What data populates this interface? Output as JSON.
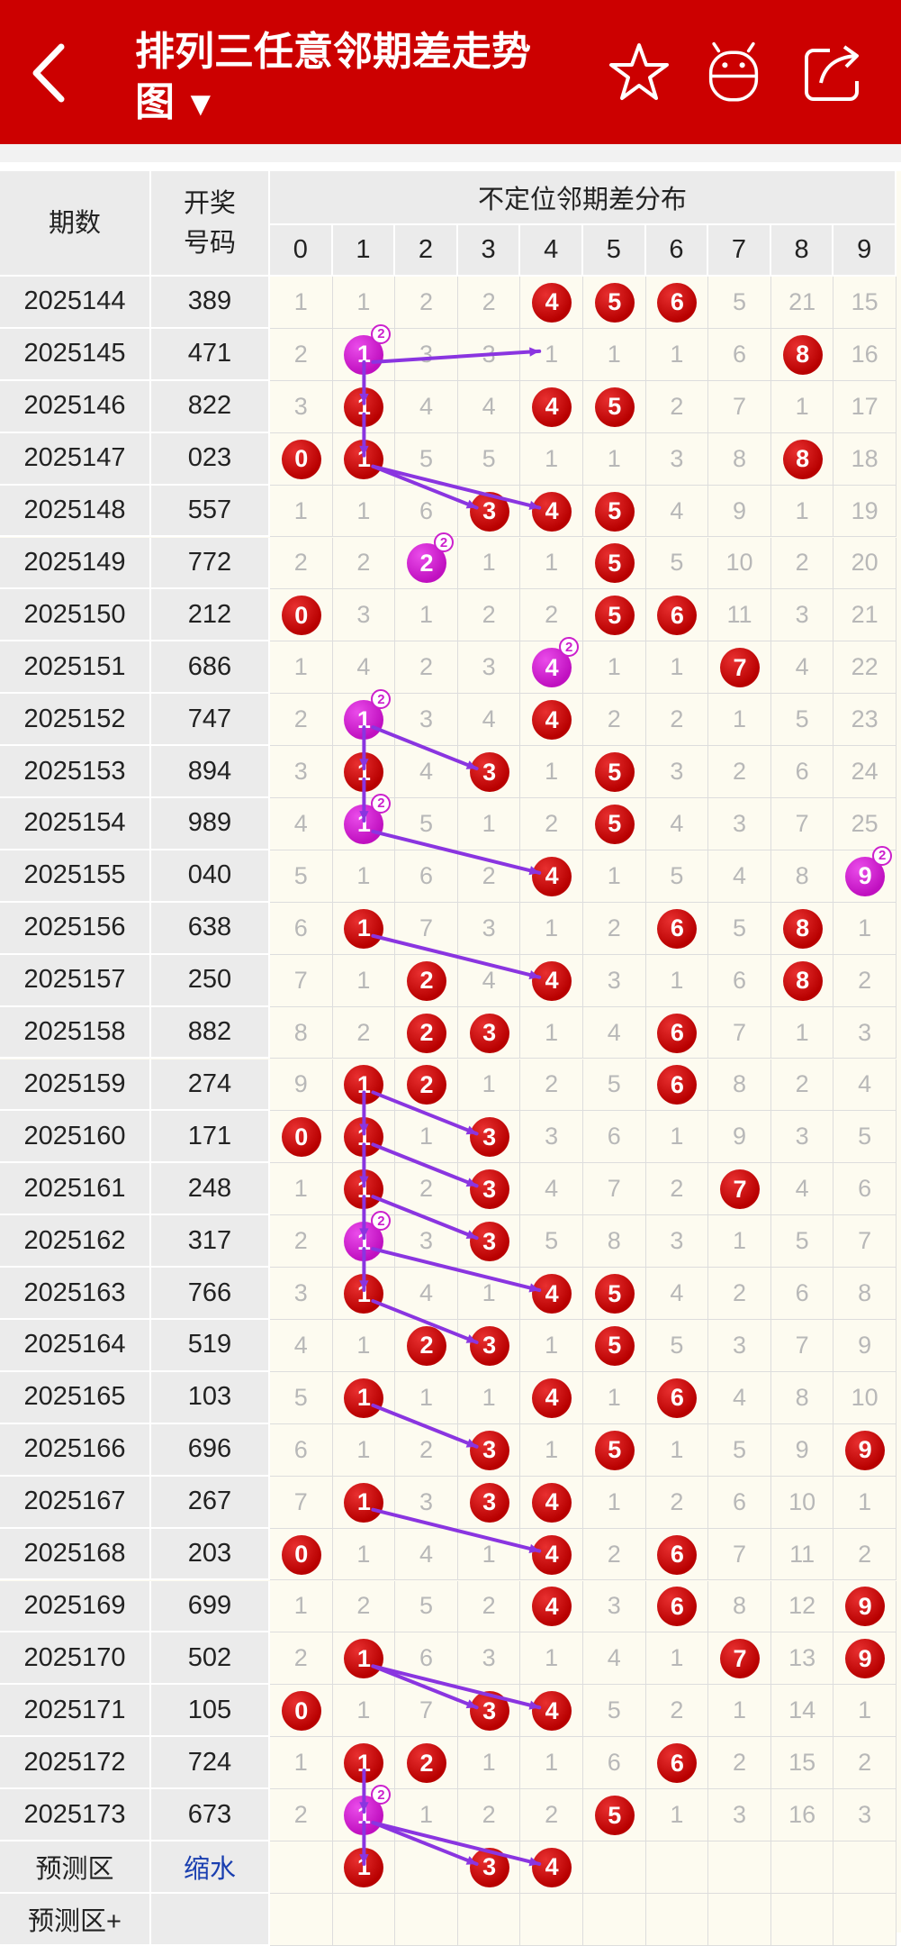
{
  "header": {
    "title_line1": "排列三任意邻期差走势",
    "title_line2": "图",
    "dropdown_arrow": "▼",
    "back_icon": "back-chevron-icon",
    "favorite_icon": "star-icon",
    "robot_icon": "robot-icon",
    "share_icon": "share-icon"
  },
  "table": {
    "col_period": "期数",
    "col_number_line1": "开奖",
    "col_number_line2": "号码",
    "col_group": "不定位邻期差分布",
    "digits": [
      "0",
      "1",
      "2",
      "3",
      "4",
      "5",
      "6",
      "7",
      "8",
      "9"
    ],
    "rows": [
      {
        "period": "2025144",
        "num": "389",
        "cells": [
          1,
          1,
          2,
          2,
          "4",
          "5",
          "6",
          5,
          21,
          15
        ]
      },
      {
        "period": "2025145",
        "num": "471",
        "cells": [
          2,
          "1*",
          3,
          3,
          1,
          1,
          1,
          6,
          "8",
          16
        ]
      },
      {
        "period": "2025146",
        "num": "822",
        "cells": [
          3,
          "1",
          4,
          4,
          "4",
          "5",
          2,
          7,
          1,
          17
        ]
      },
      {
        "period": "2025147",
        "num": "023",
        "cells": [
          "0",
          "1",
          5,
          5,
          1,
          1,
          3,
          8,
          "8",
          18
        ]
      },
      {
        "period": "2025148",
        "num": "557",
        "cells": [
          1,
          1,
          6,
          "3",
          "4",
          "5",
          4,
          9,
          1,
          19
        ]
      },
      {
        "period": "2025149",
        "num": "772",
        "cells": [
          2,
          2,
          "2*",
          1,
          1,
          "5",
          5,
          10,
          2,
          20
        ]
      },
      {
        "period": "2025150",
        "num": "212",
        "cells": [
          "0",
          3,
          1,
          2,
          2,
          "5",
          "6",
          11,
          3,
          21
        ]
      },
      {
        "period": "2025151",
        "num": "686",
        "cells": [
          1,
          4,
          2,
          3,
          "4*",
          1,
          1,
          "7",
          4,
          22
        ]
      },
      {
        "period": "2025152",
        "num": "747",
        "cells": [
          2,
          "1*",
          3,
          4,
          "4",
          2,
          2,
          1,
          5,
          23
        ]
      },
      {
        "period": "2025153",
        "num": "894",
        "cells": [
          3,
          "1",
          4,
          "3",
          1,
          "5",
          3,
          2,
          6,
          24
        ]
      },
      {
        "period": "2025154",
        "num": "989",
        "cells": [
          4,
          "1*",
          5,
          1,
          2,
          "5",
          4,
          3,
          7,
          25
        ]
      },
      {
        "period": "2025155",
        "num": "040",
        "cells": [
          5,
          1,
          6,
          2,
          "4",
          1,
          5,
          4,
          8,
          "9*"
        ]
      },
      {
        "period": "2025156",
        "num": "638",
        "cells": [
          6,
          "1",
          7,
          3,
          1,
          2,
          "6",
          5,
          "8",
          1
        ]
      },
      {
        "period": "2025157",
        "num": "250",
        "cells": [
          7,
          1,
          "2",
          4,
          "4",
          3,
          1,
          6,
          "8",
          2
        ]
      },
      {
        "period": "2025158",
        "num": "882",
        "cells": [
          8,
          2,
          "2",
          "3",
          1,
          4,
          "6",
          7,
          1,
          3
        ]
      },
      {
        "period": "2025159",
        "num": "274",
        "cells": [
          9,
          "1",
          "2",
          1,
          2,
          5,
          "6",
          8,
          2,
          4
        ]
      },
      {
        "period": "2025160",
        "num": "171",
        "cells": [
          "0",
          "1",
          1,
          "3",
          3,
          6,
          1,
          9,
          3,
          5
        ]
      },
      {
        "period": "2025161",
        "num": "248",
        "cells": [
          1,
          "1",
          2,
          "3",
          4,
          7,
          2,
          "7",
          4,
          6
        ]
      },
      {
        "period": "2025162",
        "num": "317",
        "cells": [
          2,
          "1*",
          3,
          "3",
          5,
          8,
          3,
          1,
          5,
          7
        ]
      },
      {
        "period": "2025163",
        "num": "766",
        "cells": [
          3,
          "1",
          4,
          1,
          "4",
          "5",
          4,
          2,
          6,
          8
        ]
      },
      {
        "period": "2025164",
        "num": "519",
        "cells": [
          4,
          1,
          "2",
          "3",
          1,
          "5",
          5,
          3,
          7,
          9
        ]
      },
      {
        "period": "2025165",
        "num": "103",
        "cells": [
          5,
          "1",
          1,
          1,
          "4",
          1,
          "6",
          4,
          8,
          10
        ]
      },
      {
        "period": "2025166",
        "num": "696",
        "cells": [
          6,
          1,
          2,
          "3",
          1,
          "5",
          1,
          5,
          9,
          "9"
        ]
      },
      {
        "period": "2025167",
        "num": "267",
        "cells": [
          7,
          "1",
          3,
          "3",
          "4",
          1,
          2,
          6,
          10,
          1
        ]
      },
      {
        "period": "2025168",
        "num": "203",
        "cells": [
          "0",
          1,
          4,
          1,
          "4",
          2,
          "6",
          7,
          11,
          2
        ]
      },
      {
        "period": "2025169",
        "num": "699",
        "cells": [
          1,
          2,
          5,
          2,
          "4",
          3,
          "6",
          8,
          12,
          "9"
        ]
      },
      {
        "period": "2025170",
        "num": "502",
        "cells": [
          2,
          "1",
          6,
          3,
          1,
          4,
          1,
          "7",
          13,
          "9"
        ]
      },
      {
        "period": "2025171",
        "num": "105",
        "cells": [
          "0",
          1,
          7,
          "3",
          "4",
          5,
          2,
          1,
          14,
          1
        ]
      },
      {
        "period": "2025172",
        "num": "724",
        "cells": [
          1,
          "1",
          "2",
          1,
          1,
          6,
          "6",
          2,
          15,
          2
        ]
      },
      {
        "period": "2025173",
        "num": "673",
        "cells": [
          2,
          "1*",
          1,
          2,
          2,
          "5",
          1,
          3,
          16,
          3
        ]
      }
    ],
    "predict_label": "预测区",
    "predict_link": "缩水",
    "predict_balls": [
      "1",
      "3",
      "4"
    ],
    "predict_plus_label": "预测区+",
    "superscript": "2"
  }
}
